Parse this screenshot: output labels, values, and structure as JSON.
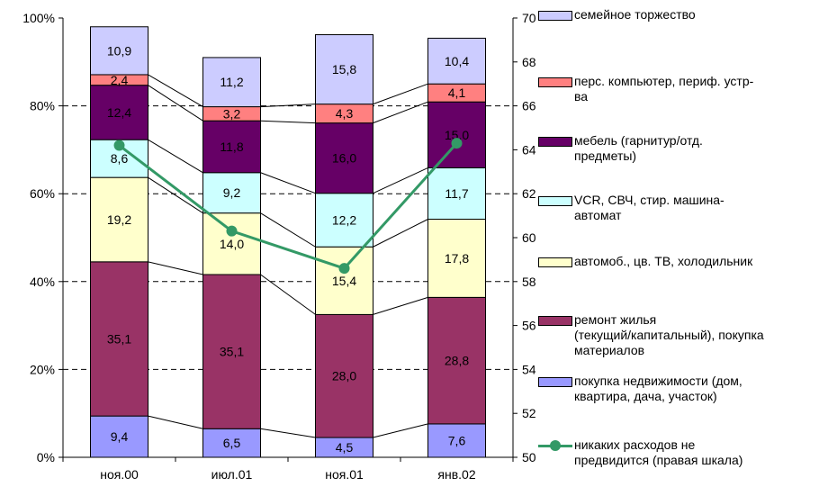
{
  "chart_data": {
    "type": "bar",
    "stacked": true,
    "categories": [
      "ноя.00",
      "июл.01",
      "ноя.01",
      "янв.02"
    ],
    "y_left": {
      "ylim": [
        0,
        100
      ],
      "ticks": [
        "0%",
        "20%",
        "40%",
        "60%",
        "80%",
        "100%"
      ],
      "tick_values": [
        0,
        20,
        40,
        60,
        80,
        100
      ]
    },
    "y_right": {
      "ylim": [
        50,
        70
      ],
      "ticks": [
        "50",
        "52",
        "54",
        "56",
        "58",
        "60",
        "62",
        "64",
        "66",
        "68",
        "70"
      ],
      "tick_values": [
        50,
        52,
        54,
        56,
        58,
        60,
        62,
        64,
        66,
        68,
        70
      ]
    },
    "grid": "dashed horizontal",
    "legend_position": "right",
    "series": [
      {
        "name": "покупка недвижимости (дом, квартира, дача, участок)",
        "color": "#9999ff",
        "values": [
          9.4,
          6.5,
          4.5,
          7.6
        ],
        "labels": [
          "9,4",
          "6,5",
          "4,5",
          "7,6"
        ]
      },
      {
        "name": "ремонт жилья (текущий/капитальный), покупка материалов",
        "color": "#993366",
        "values": [
          35.1,
          35.1,
          28.0,
          28.8
        ],
        "labels": [
          "35,1",
          "35,1",
          "28,0",
          "28,8"
        ]
      },
      {
        "name": "автомоб., цв. ТВ, холодильник",
        "color": "#ffffcc",
        "values": [
          19.2,
          14.0,
          15.4,
          17.8
        ],
        "labels": [
          "19,2",
          "14,0",
          "15,4",
          "17,8"
        ]
      },
      {
        "name": "VCR, СВЧ, стир. машина-автомат",
        "color": "#ccffff",
        "values": [
          8.6,
          9.2,
          12.2,
          11.7
        ],
        "labels": [
          "8,6",
          "9,2",
          "12,2",
          "11,7"
        ]
      },
      {
        "name": "мебель (гарнитур/отд. предметы)",
        "color": "#660066",
        "values": [
          12.4,
          11.8,
          16.0,
          15.0
        ],
        "labels": [
          "12,4",
          "11,8",
          "16,0",
          "15,0"
        ]
      },
      {
        "name": "перс. компьютер, периф. устр-ва",
        "color": "#ff8080",
        "values": [
          2.4,
          3.2,
          4.3,
          4.1
        ],
        "labels": [
          "2,4",
          "3,2",
          "4,3",
          "4,1"
        ]
      },
      {
        "name": "семейное торжество",
        "color": "#ccccff",
        "values": [
          10.9,
          11.2,
          15.8,
          10.4
        ],
        "labels": [
          "10,9",
          "11,2",
          "15,8",
          "10,4"
        ]
      }
    ],
    "line_series": {
      "name": "никаких расходов не предвидится (правая шкала)",
      "color": "#339966",
      "axis": "right",
      "values": [
        64.2,
        60.3,
        58.6,
        64.3
      ]
    }
  },
  "legend": [
    {
      "kind": "box",
      "color": "#ccccff",
      "lines": [
        "семейное торжество"
      ]
    },
    {
      "kind": "box",
      "color": "#ff8080",
      "lines": [
        "перс. компьютер, периф. устр-",
        "ва"
      ]
    },
    {
      "kind": "box",
      "color": "#660066",
      "lines": [
        "мебель (гарнитур/отд.",
        "предметы)"
      ]
    },
    {
      "kind": "box",
      "color": "#ccffff",
      "lines": [
        "VCR, СВЧ, стир. машина-",
        "автомат"
      ]
    },
    {
      "kind": "box",
      "color": "#ffffcc",
      "lines": [
        "автомоб., цв. ТВ, холодильник"
      ]
    },
    {
      "kind": "box",
      "color": "#993366",
      "lines": [
        "ремонт жилья",
        "(текущий/капитальный), покупка",
        "материалов"
      ]
    },
    {
      "kind": "box",
      "color": "#9999ff",
      "lines": [
        "покупка недвижимости (дом,",
        "квартира, дача, участок)"
      ]
    },
    {
      "kind": "line",
      "color": "#339966",
      "lines": [
        "никаких расходов не",
        "предвидится (правая шкала)"
      ]
    }
  ]
}
